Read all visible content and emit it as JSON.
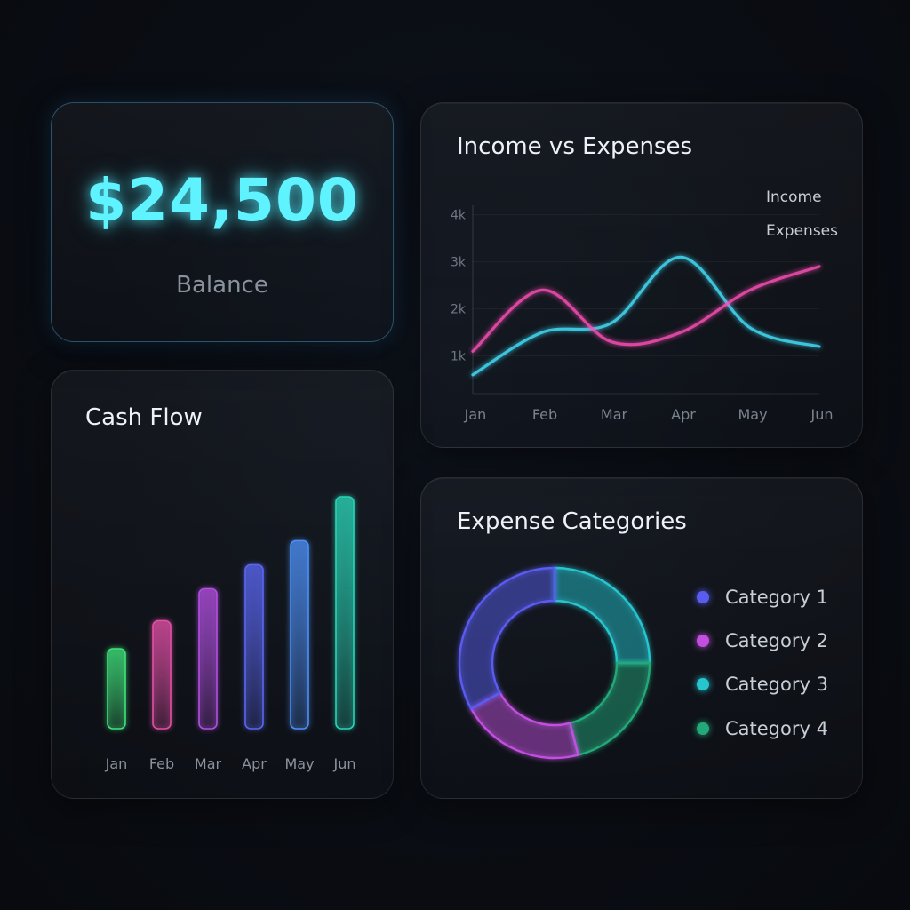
{
  "balance": {
    "amount": "$24,500",
    "label": "Balance"
  },
  "income_chart": {
    "title": "Income vs Expenses",
    "legend": [
      {
        "label": "Income",
        "color": "#45e3ff"
      },
      {
        "label": "Expenses",
        "color": "#ff4fb8"
      }
    ]
  },
  "cashflow_chart": {
    "title": "Cash Flow"
  },
  "categories_chart": {
    "title": "Expense Categories",
    "legend": [
      {
        "label": "Category 1",
        "color": "#5a5cf0"
      },
      {
        "label": "Category 2",
        "color": "#c24fe0"
      },
      {
        "label": "Category 3",
        "color": "#27c6cf"
      },
      {
        "label": "Category 4",
        "color": "#23a979"
      }
    ]
  },
  "chart_data": [
    {
      "type": "line",
      "title": "Income vs Expenses",
      "categories": [
        "Jan",
        "Feb",
        "Mar",
        "Apr",
        "May",
        "Jun"
      ],
      "y_ticks": [
        "1k",
        "2k",
        "3k",
        "4k"
      ],
      "ylim": [
        0.2,
        4.2
      ],
      "grid": true,
      "legend_position": "top-right",
      "series": [
        {
          "name": "Income",
          "color": "#45e3ff",
          "values": [
            0.6,
            1.5,
            1.7,
            3.1,
            1.6,
            1.2
          ]
        },
        {
          "name": "Expenses",
          "color": "#ff4fb8",
          "values": [
            1.1,
            2.4,
            1.3,
            1.5,
            2.4,
            2.9
          ]
        }
      ]
    },
    {
      "type": "bar",
      "title": "Cash Flow",
      "categories": [
        "Jan",
        "Feb",
        "Mar",
        "Apr",
        "May",
        "Jun"
      ],
      "values": [
        1.0,
        1.35,
        1.75,
        2.05,
        2.35,
        2.9
      ],
      "ylim": [
        0,
        3.2
      ],
      "colors": [
        "#3fe27a",
        "#e24fa6",
        "#b14fe0",
        "#5a66f0",
        "#4d8ff5",
        "#2ad3b6"
      ]
    },
    {
      "type": "pie",
      "title": "Expense Categories",
      "donut": true,
      "labels": [
        "Category 1",
        "Category 2",
        "Category 3",
        "Category 4"
      ],
      "values": [
        33,
        21,
        25,
        21
      ],
      "colors": [
        "#5a5cf0",
        "#c24fe0",
        "#27c6cf",
        "#23a979"
      ]
    }
  ]
}
